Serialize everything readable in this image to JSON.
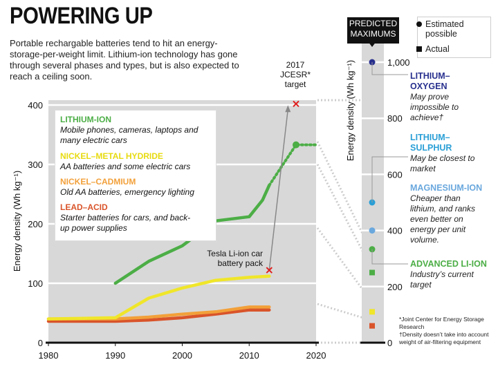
{
  "title": "POWERING UP",
  "subtitle": "Portable rechargable batteries tend to hit an energy-storage-per-weight limit. Lithium-ion technology has gone through several phases and types, but is also expected to reach a ceiling soon.",
  "chart_data": [
    {
      "type": "line",
      "ylabel": "Energy density (Wh kg⁻¹)",
      "xlabel": "",
      "xlim": [
        1980,
        2020
      ],
      "ylim": [
        0,
        400
      ],
      "x_ticks": [
        "1980",
        "1990",
        "2000",
        "2010",
        "2020"
      ],
      "y_ticks": [
        "0",
        "100",
        "200",
        "300",
        "400"
      ],
      "series": [
        {
          "name": "LITHIUM-ION",
          "description": "Mobile phones, cameras, laptops and many electric cars",
          "color": "#4cae46",
          "x": [
            1990,
            1995,
            2000,
            2005,
            2010,
            2012,
            2013
          ],
          "values": [
            100,
            137,
            163,
            205,
            212,
            240,
            265
          ],
          "projection_x": [
            2013,
            2017,
            2020
          ],
          "projection_values": [
            265,
            333,
            333
          ]
        },
        {
          "name": "NICKEL–METAL HYDRIDE",
          "description": "AA batteries and some electric cars",
          "color": "#f0e62a",
          "x": [
            1980,
            1990,
            1995,
            2000,
            2005,
            2010,
            2013
          ],
          "values": [
            40,
            42,
            75,
            92,
            105,
            110,
            112
          ]
        },
        {
          "name": "NICKEL–CADMIUM",
          "description": "Old AA batteries, emergency lighting",
          "color": "#f2a03a",
          "x": [
            1980,
            1990,
            1995,
            2000,
            2005,
            2010,
            2013
          ],
          "values": [
            40,
            40,
            43,
            48,
            52,
            60,
            60
          ]
        },
        {
          "name": "LEAD–ACID",
          "description": "Starter batteries for cars, and back-up power supplies",
          "color": "#d9542a",
          "x": [
            1980,
            1990,
            1995,
            2000,
            2005,
            2010,
            2013
          ],
          "values": [
            36,
            36,
            38,
            42,
            48,
            55,
            55
          ]
        }
      ],
      "annotations": [
        {
          "label": "Tesla Li-ion car battery pack",
          "x": 2013,
          "y": 122,
          "marker": "x",
          "color": "#e02020"
        },
        {
          "label": "2017 JCESR* target",
          "x": 2016,
          "y": 402,
          "marker": "x",
          "color": "#e02020"
        }
      ]
    },
    {
      "type": "scatter",
      "title": "PREDICTED MAXIMUMS",
      "ylabel": "Energy density (Wh kg⁻¹)",
      "ylim": [
        0,
        1000
      ],
      "y_ticks": [
        "0",
        "200",
        "400",
        "600",
        "800",
        "1,000"
      ],
      "points": [
        {
          "name": "LITHIUM–OXYGEN",
          "value": 1000,
          "kind": "Estimated possible",
          "color": "#28308e",
          "description": "May prove impossible to achieve†"
        },
        {
          "name": "LITHIUM–SULPHUR",
          "value": 500,
          "kind": "Estimated possible",
          "color": "#2a9fd6",
          "description": "May be closest to market"
        },
        {
          "name": "MAGNESIUM-ION",
          "value": 400,
          "kind": "Estimated possible",
          "color": "#6aa8de",
          "description": "Cheaper than lithium, and ranks even better on energy per unit volume."
        },
        {
          "name": "ADVANCED LI-ION",
          "value": 333,
          "kind": "Estimated possible",
          "color": "#4cae46",
          "description": "Industry’s current target"
        },
        {
          "name": "LITHIUM-ION",
          "value": 250,
          "kind": "Actual",
          "color": "#4cae46"
        },
        {
          "name": "NICKEL–METAL HYDRIDE",
          "value": 110,
          "kind": "Actual",
          "color": "#f0e62a"
        },
        {
          "name": "LEAD–ACID",
          "value": 60,
          "kind": "Actual",
          "color": "#d9542a"
        }
      ],
      "legend": [
        {
          "label": "Estimated possible",
          "marker": "circle"
        },
        {
          "label": "Actual",
          "marker": "square"
        }
      ]
    }
  ],
  "text": {
    "annotation_target": "2017 JCESR* target",
    "annotation_tesla": "Tesla Li-ion car battery pack",
    "legend_key_estimated": "Estimated possible",
    "legend_key_actual": "Actual",
    "predicted_maximums": "PREDICTED MAXIMUMS",
    "footnote_1": "*Joint Center for Energy Storage Research",
    "footnote_2": "†Density doesn’t take into account weight of air-filtering equipment"
  }
}
